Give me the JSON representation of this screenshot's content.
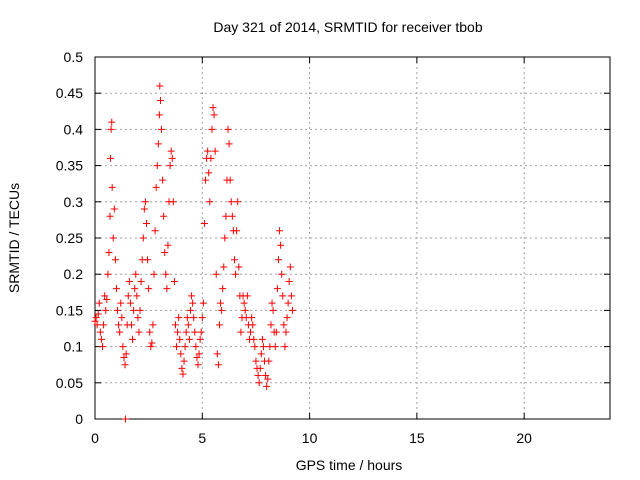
{
  "chart_data": {
    "type": "scatter",
    "title": "Day 321 of 2014, SRMTID for receiver tbob",
    "xlabel": "GPS time / hours",
    "ylabel": "SRMTID / TECUs",
    "xlim": [
      0,
      24
    ],
    "ylim": [
      0,
      0.5
    ],
    "x_ticks": [
      0,
      5,
      10,
      15,
      20
    ],
    "y_ticks": [
      0,
      0.05,
      0.1,
      0.15,
      0.2,
      0.25,
      0.3,
      0.35,
      0.4,
      0.45,
      0.5
    ],
    "x_tick_labels": [
      "0",
      "5",
      "10",
      "15",
      "20"
    ],
    "y_tick_labels": [
      "0",
      "0.05",
      "0.1",
      "0.15",
      "0.2",
      "0.25",
      "0.3",
      "0.35",
      "0.4",
      "0.45",
      "0.5"
    ],
    "grid": true,
    "marker": "+",
    "series": [
      {
        "color": "#ff0000",
        "points": [
          [
            0.0,
            0.135
          ],
          [
            0.05,
            0.14
          ],
          [
            0.1,
            0.13
          ],
          [
            0.15,
            0.145
          ],
          [
            0.2,
            0.16
          ],
          [
            0.25,
            0.12
          ],
          [
            0.3,
            0.11
          ],
          [
            0.35,
            0.1
          ],
          [
            0.4,
            0.13
          ],
          [
            0.45,
            0.17
          ],
          [
            0.5,
            0.15
          ],
          [
            0.55,
            0.165
          ],
          [
            0.6,
            0.2
          ],
          [
            0.65,
            0.23
          ],
          [
            0.7,
            0.28
          ],
          [
            0.72,
            0.36
          ],
          [
            0.75,
            0.4
          ],
          [
            0.78,
            0.41
          ],
          [
            0.8,
            0.32
          ],
          [
            0.85,
            0.25
          ],
          [
            0.9,
            0.29
          ],
          [
            0.95,
            0.22
          ],
          [
            1.0,
            0.18
          ],
          [
            1.05,
            0.15
          ],
          [
            1.1,
            0.13
          ],
          [
            1.15,
            0.12
          ],
          [
            1.2,
            0.16
          ],
          [
            1.25,
            0.14
          ],
          [
            1.3,
            0.1
          ],
          [
            1.35,
            0.085
          ],
          [
            1.4,
            0.075
          ],
          [
            1.42,
            0.0
          ],
          [
            1.45,
            0.09
          ],
          [
            1.5,
            0.13
          ],
          [
            1.55,
            0.17
          ],
          [
            1.6,
            0.19
          ],
          [
            1.65,
            0.16
          ],
          [
            1.7,
            0.13
          ],
          [
            1.75,
            0.11
          ],
          [
            1.8,
            0.15
          ],
          [
            1.85,
            0.18
          ],
          [
            1.9,
            0.2
          ],
          [
            1.95,
            0.17
          ],
          [
            2.0,
            0.14
          ],
          [
            2.05,
            0.12
          ],
          [
            2.1,
            0.15
          ],
          [
            2.15,
            0.19
          ],
          [
            2.2,
            0.22
          ],
          [
            2.25,
            0.25
          ],
          [
            2.3,
            0.29
          ],
          [
            2.35,
            0.3
          ],
          [
            2.4,
            0.27
          ],
          [
            2.45,
            0.22
          ],
          [
            2.5,
            0.18
          ],
          [
            2.55,
            0.12
          ],
          [
            2.6,
            0.1
          ],
          [
            2.65,
            0.105
          ],
          [
            2.7,
            0.13
          ],
          [
            2.75,
            0.2
          ],
          [
            2.8,
            0.26
          ],
          [
            2.85,
            0.32
          ],
          [
            2.9,
            0.35
          ],
          [
            2.95,
            0.38
          ],
          [
            3.0,
            0.42
          ],
          [
            3.02,
            0.46
          ],
          [
            3.05,
            0.44
          ],
          [
            3.1,
            0.4
          ],
          [
            3.15,
            0.33
          ],
          [
            3.2,
            0.28
          ],
          [
            3.25,
            0.23
          ],
          [
            3.3,
            0.2
          ],
          [
            3.35,
            0.18
          ],
          [
            3.4,
            0.24
          ],
          [
            3.45,
            0.3
          ],
          [
            3.5,
            0.35
          ],
          [
            3.55,
            0.37
          ],
          [
            3.6,
            0.36
          ],
          [
            3.65,
            0.3
          ],
          [
            3.7,
            0.19
          ],
          [
            3.75,
            0.13
          ],
          [
            3.8,
            0.1
          ],
          [
            3.85,
            0.12
          ],
          [
            3.9,
            0.14
          ],
          [
            3.95,
            0.11
          ],
          [
            4.0,
            0.09
          ],
          [
            4.05,
            0.07
          ],
          [
            4.1,
            0.062
          ],
          [
            4.15,
            0.08
          ],
          [
            4.2,
            0.1
          ],
          [
            4.25,
            0.12
          ],
          [
            4.3,
            0.14
          ],
          [
            4.35,
            0.13
          ],
          [
            4.4,
            0.11
          ],
          [
            4.45,
            0.15
          ],
          [
            4.5,
            0.17
          ],
          [
            4.55,
            0.16
          ],
          [
            4.6,
            0.14
          ],
          [
            4.65,
            0.12
          ],
          [
            4.7,
            0.1
          ],
          [
            4.75,
            0.085
          ],
          [
            4.8,
            0.075
          ],
          [
            4.85,
            0.09
          ],
          [
            4.9,
            0.11
          ],
          [
            4.95,
            0.12
          ],
          [
            5.0,
            0.14
          ],
          [
            5.05,
            0.16
          ],
          [
            5.1,
            0.27
          ],
          [
            5.15,
            0.33
          ],
          [
            5.2,
            0.36
          ],
          [
            5.25,
            0.37
          ],
          [
            5.3,
            0.34
          ],
          [
            5.35,
            0.3
          ],
          [
            5.4,
            0.36
          ],
          [
            5.45,
            0.4
          ],
          [
            5.5,
            0.43
          ],
          [
            5.55,
            0.42
          ],
          [
            5.6,
            0.37
          ],
          [
            5.65,
            0.2
          ],
          [
            5.7,
            0.09
          ],
          [
            5.75,
            0.075
          ],
          [
            5.8,
            0.13
          ],
          [
            5.85,
            0.16
          ],
          [
            5.9,
            0.15
          ],
          [
            5.95,
            0.18
          ],
          [
            6.0,
            0.21
          ],
          [
            6.05,
            0.25
          ],
          [
            6.1,
            0.28
          ],
          [
            6.15,
            0.33
          ],
          [
            6.2,
            0.4
          ],
          [
            6.25,
            0.38
          ],
          [
            6.3,
            0.33
          ],
          [
            6.35,
            0.3
          ],
          [
            6.4,
            0.28
          ],
          [
            6.45,
            0.26
          ],
          [
            6.5,
            0.22
          ],
          [
            6.55,
            0.2
          ],
          [
            6.6,
            0.26
          ],
          [
            6.65,
            0.3
          ],
          [
            6.7,
            0.21
          ],
          [
            6.75,
            0.17
          ],
          [
            6.8,
            0.12
          ],
          [
            6.85,
            0.14
          ],
          [
            6.9,
            0.17
          ],
          [
            6.95,
            0.16
          ],
          [
            7.0,
            0.15
          ],
          [
            7.05,
            0.14
          ],
          [
            7.1,
            0.17
          ],
          [
            7.15,
            0.13
          ],
          [
            7.2,
            0.11
          ],
          [
            7.25,
            0.12
          ],
          [
            7.3,
            0.14
          ],
          [
            7.35,
            0.13
          ],
          [
            7.4,
            0.11
          ],
          [
            7.45,
            0.1
          ],
          [
            7.5,
            0.08
          ],
          [
            7.55,
            0.07
          ],
          [
            7.6,
            0.06
          ],
          [
            7.65,
            0.05
          ],
          [
            7.7,
            0.07
          ],
          [
            7.75,
            0.09
          ],
          [
            7.8,
            0.11
          ],
          [
            7.85,
            0.1
          ],
          [
            7.9,
            0.08
          ],
          [
            7.95,
            0.06
          ],
          [
            8.0,
            0.045
          ],
          [
            8.05,
            0.055
          ],
          [
            8.1,
            0.08
          ],
          [
            8.15,
            0.1
          ],
          [
            8.2,
            0.13
          ],
          [
            8.25,
            0.16
          ],
          [
            8.3,
            0.15
          ],
          [
            8.35,
            0.12
          ],
          [
            8.4,
            0.1
          ],
          [
            8.45,
            0.12
          ],
          [
            8.5,
            0.18
          ],
          [
            8.55,
            0.22
          ],
          [
            8.6,
            0.26
          ],
          [
            8.65,
            0.24
          ],
          [
            8.7,
            0.2
          ],
          [
            8.75,
            0.17
          ],
          [
            8.8,
            0.13
          ],
          [
            8.85,
            0.1
          ],
          [
            8.9,
            0.12
          ],
          [
            8.95,
            0.14
          ],
          [
            9.0,
            0.16
          ],
          [
            9.05,
            0.19
          ],
          [
            9.1,
            0.21
          ],
          [
            9.15,
            0.17
          ],
          [
            9.2,
            0.15
          ]
        ]
      }
    ]
  }
}
